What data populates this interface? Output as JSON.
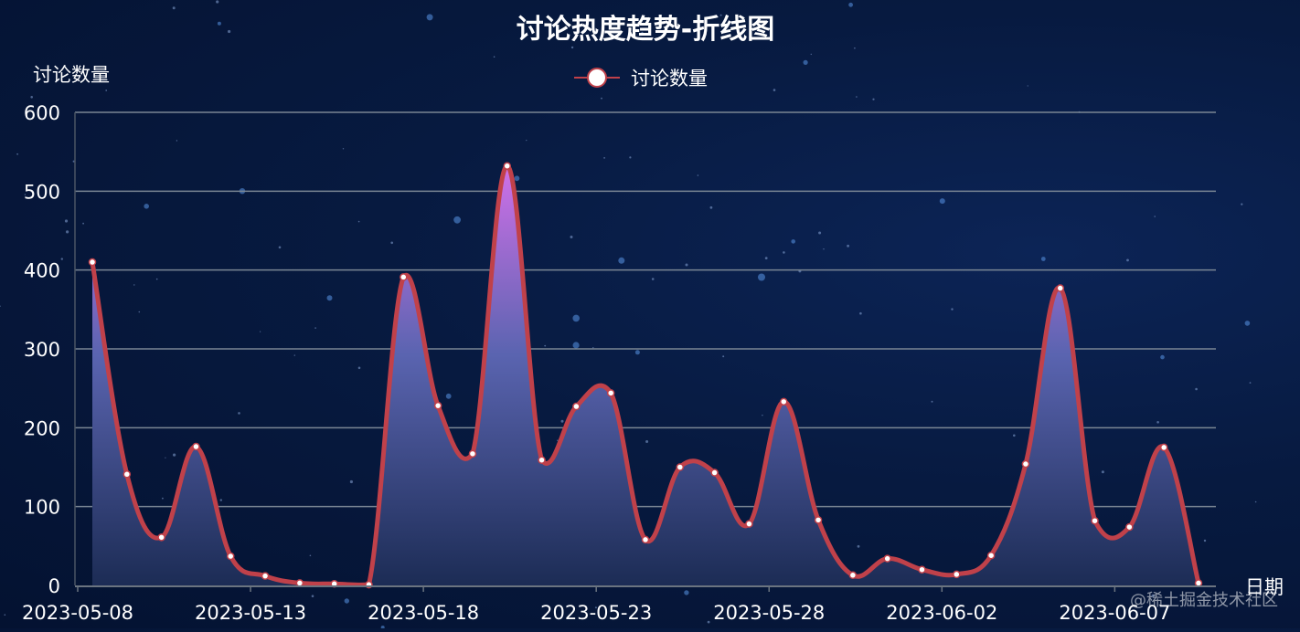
{
  "chart_data": {
    "type": "area",
    "title": "讨论热度趋势-折线图",
    "ylabel": "讨论数量",
    "xlabel": "日期",
    "ylim": [
      0,
      600
    ],
    "yticks": [
      0,
      100,
      200,
      300,
      400,
      500,
      600
    ],
    "grid": true,
    "legend": "top-center",
    "x": [
      "2023-05-08",
      "2023-05-09",
      "2023-05-10",
      "2023-05-11",
      "2023-05-12",
      "2023-05-13",
      "2023-05-14",
      "2023-05-15",
      "2023-05-16",
      "2023-05-17",
      "2023-05-18",
      "2023-05-19",
      "2023-05-20",
      "2023-05-21",
      "2023-05-22",
      "2023-05-23",
      "2023-05-24",
      "2023-05-25",
      "2023-05-26",
      "2023-05-27",
      "2023-05-28",
      "2023-05-29",
      "2023-05-30",
      "2023-05-31",
      "2023-06-01",
      "2023-06-02",
      "2023-06-03",
      "2023-06-04",
      "2023-06-05",
      "2023-06-06",
      "2023-06-07",
      "2023-06-08",
      "2023-06-09"
    ],
    "xticks": [
      "2023-05-08",
      "2023-05-13",
      "2023-05-18",
      "2023-05-23",
      "2023-05-28",
      "2023-06-02",
      "2023-06-07"
    ],
    "series": [
      {
        "name": "讨论数量",
        "values": [
          410,
          141,
          61,
          176,
          37,
          12,
          3,
          2,
          1,
          391,
          228,
          167,
          532,
          159,
          227,
          244,
          58,
          150,
          143,
          78,
          233,
          83,
          13,
          34,
          20,
          14,
          38,
          154,
          377,
          82,
          74,
          175,
          3
        ]
      }
    ],
    "colors": {
      "line": "#c0414a",
      "point_fill": "#ffffff",
      "area_top": "#d070e8",
      "area_mid": "#5a64b0",
      "area_bottom": "#1c2c55",
      "grid": "#7a8694"
    }
  },
  "watermark": "@稀土掘金技术社区"
}
